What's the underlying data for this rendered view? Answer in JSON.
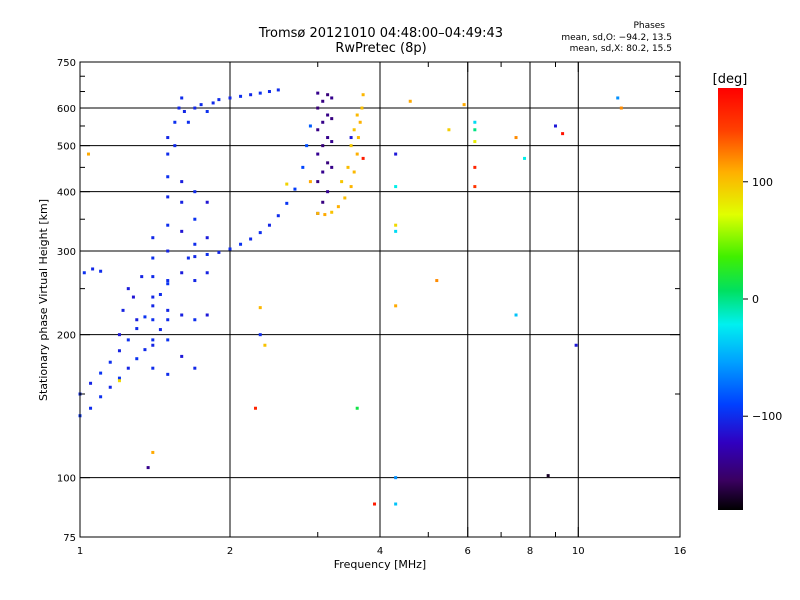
{
  "title_line1": "Tromsø 20121010 04:48:00–04:49:43",
  "title_line2": "RwPretec (8p)",
  "phases": {
    "heading": "Phases",
    "line_o": "mean, sd,O: −94.2, 13.5",
    "line_x": "mean, sd,X:  80.2, 15.5"
  },
  "colorbar": {
    "unit": "[deg]",
    "ticks": [
      "100",
      "0",
      "−100"
    ],
    "tick_values": [
      100,
      0,
      -100
    ],
    "range": [
      -180,
      180
    ]
  },
  "chart_data": {
    "type": "scatter",
    "xlabel": "Frequency [MHz]",
    "ylabel": "Stationary phase Virtual Height [km]",
    "x_scale": "log",
    "y_scale": "log",
    "xlim": [
      1,
      16
    ],
    "ylim": [
      75,
      750
    ],
    "grid": true,
    "x_ticks": [
      1,
      2,
      4,
      6,
      8,
      10,
      16
    ],
    "x_tick_labels": [
      "1",
      "2",
      "4",
      "6",
      "8",
      "10",
      "16"
    ],
    "x_minor_ticks": [
      3,
      5,
      7,
      9
    ],
    "y_ticks": [
      75,
      100,
      200,
      300,
      400,
      500,
      600,
      750
    ],
    "y_tick_labels": [
      "75",
      "100",
      "200",
      "300",
      "400",
      "500",
      "600",
      "750"
    ],
    "y_minor_ticks": [
      150,
      250,
      350,
      450,
      550,
      650,
      700
    ],
    "vertical_grid_lines": [
      2,
      4,
      6,
      8,
      10
    ],
    "horizontal_grid_lines": [
      100,
      200,
      300,
      400,
      500,
      600
    ],
    "series": [
      {
        "values": [
          [
            1.0,
            135,
            -95
          ],
          [
            1.05,
            140,
            -100
          ],
          [
            1.1,
            148,
            -98
          ],
          [
            1.15,
            155,
            -102
          ],
          [
            1.2,
            162,
            -96
          ],
          [
            1.25,
            170,
            -104
          ],
          [
            1.3,
            178,
            -97
          ],
          [
            1.35,
            186,
            -101
          ],
          [
            1.4,
            195,
            -99
          ],
          [
            1.45,
            205,
            -103
          ],
          [
            1.5,
            215,
            -100
          ],
          [
            1.0,
            150,
            -100
          ],
          [
            1.05,
            158,
            -104
          ],
          [
            1.1,
            166,
            -96
          ],
          [
            1.15,
            175,
            -99
          ],
          [
            1.2,
            185,
            -105
          ],
          [
            1.25,
            195,
            -98
          ],
          [
            1.3,
            206,
            -101
          ],
          [
            1.35,
            218,
            -97
          ],
          [
            1.4,
            230,
            -103
          ],
          [
            1.45,
            243,
            -100
          ],
          [
            1.5,
            256,
            -96
          ],
          [
            1.02,
            270,
            -98
          ],
          [
            1.06,
            275,
            -102
          ],
          [
            1.1,
            272,
            -100
          ],
          [
            1.2,
            200,
            -110
          ],
          [
            1.22,
            225,
            -105
          ],
          [
            1.25,
            250,
            -108
          ],
          [
            1.28,
            240,
            -112
          ],
          [
            1.3,
            215,
            -107
          ],
          [
            1.33,
            265,
            -104
          ],
          [
            1.4,
            170,
            -100
          ],
          [
            1.4,
            190,
            -104
          ],
          [
            1.4,
            215,
            -99
          ],
          [
            1.4,
            240,
            -103
          ],
          [
            1.4,
            265,
            -101
          ],
          [
            1.4,
            290,
            -98
          ],
          [
            1.4,
            320,
            -102
          ],
          [
            1.5,
            165,
            -100
          ],
          [
            1.5,
            195,
            -97
          ],
          [
            1.5,
            225,
            -103
          ],
          [
            1.5,
            260,
            -100
          ],
          [
            1.5,
            300,
            -104
          ],
          [
            1.5,
            340,
            -99
          ],
          [
            1.5,
            390,
            -102
          ],
          [
            1.5,
            430,
            -98
          ],
          [
            1.5,
            480,
            -100
          ],
          [
            1.5,
            520,
            -103
          ],
          [
            1.55,
            500,
            -101
          ],
          [
            1.55,
            560,
            -98
          ],
          [
            1.58,
            600,
            -102
          ],
          [
            1.6,
            630,
            -100
          ],
          [
            1.62,
            590,
            -103
          ],
          [
            1.65,
            560,
            -99
          ],
          [
            1.7,
            600,
            -102
          ],
          [
            1.75,
            610,
            -100
          ],
          [
            1.8,
            590,
            -98
          ],
          [
            1.85,
            615,
            -101
          ],
          [
            1.6,
            180,
            -110
          ],
          [
            1.6,
            220,
            -106
          ],
          [
            1.6,
            270,
            -108
          ],
          [
            1.6,
            330,
            -112
          ],
          [
            1.6,
            380,
            -105
          ],
          [
            1.6,
            420,
            -107
          ],
          [
            1.7,
            170,
            -102
          ],
          [
            1.7,
            215,
            -99
          ],
          [
            1.7,
            260,
            -103
          ],
          [
            1.7,
            310,
            -100
          ],
          [
            1.7,
            350,
            -97
          ],
          [
            1.7,
            400,
            -101
          ],
          [
            1.8,
            220,
            -110
          ],
          [
            1.8,
            270,
            -105
          ],
          [
            1.8,
            320,
            -108
          ],
          [
            1.8,
            380,
            -112
          ],
          [
            1.65,
            290,
            -100
          ],
          [
            1.7,
            292,
            -102
          ],
          [
            1.8,
            295,
            -99
          ],
          [
            1.9,
            298,
            -103
          ],
          [
            2.0,
            303,
            -100
          ],
          [
            2.1,
            310,
            -97
          ],
          [
            2.2,
            318,
            -101
          ],
          [
            2.3,
            328,
            -99
          ],
          [
            2.4,
            340,
            -103
          ],
          [
            2.5,
            356,
            -100
          ],
          [
            2.6,
            378,
            -96
          ],
          [
            2.7,
            405,
            -92
          ],
          [
            2.8,
            450,
            -88
          ],
          [
            2.85,
            500,
            -85
          ],
          [
            2.9,
            550,
            -80
          ],
          [
            1.9,
            625,
            -100
          ],
          [
            2.0,
            630,
            -103
          ],
          [
            2.1,
            635,
            -99
          ],
          [
            2.2,
            640,
            -102
          ],
          [
            2.3,
            645,
            -98
          ],
          [
            2.4,
            650,
            -101
          ],
          [
            2.5,
            655,
            -100
          ]
        ]
      },
      {
        "values": [
          [
            3.0,
            360,
            -140
          ],
          [
            3.0,
            420,
            -145
          ],
          [
            3.0,
            480,
            -138
          ],
          [
            3.0,
            540,
            -142
          ],
          [
            3.0,
            600,
            -147
          ],
          [
            3.0,
            645,
            -140
          ],
          [
            3.07,
            380,
            -144
          ],
          [
            3.07,
            440,
            -139
          ],
          [
            3.07,
            500,
            -146
          ],
          [
            3.07,
            560,
            -141
          ],
          [
            3.07,
            620,
            -143
          ],
          [
            3.14,
            400,
            -138
          ],
          [
            3.14,
            460,
            -145
          ],
          [
            3.14,
            520,
            -140
          ],
          [
            3.14,
            580,
            -142
          ],
          [
            3.14,
            640,
            -146
          ],
          [
            3.2,
            450,
            -141
          ],
          [
            3.2,
            510,
            -139
          ],
          [
            3.2,
            570,
            -144
          ],
          [
            3.2,
            630,
            -140
          ]
        ]
      },
      {
        "values": [
          [
            3.0,
            360,
            105
          ],
          [
            3.1,
            358,
            110
          ],
          [
            3.2,
            362,
            100
          ],
          [
            3.3,
            372,
            108
          ],
          [
            3.4,
            388,
            102
          ],
          [
            3.5,
            410,
            106
          ],
          [
            3.55,
            440,
            104
          ],
          [
            3.6,
            480,
            108
          ],
          [
            3.62,
            520,
            103
          ],
          [
            3.65,
            560,
            107
          ],
          [
            3.68,
            600,
            101
          ],
          [
            3.7,
            640,
            105
          ],
          [
            3.35,
            420,
            98
          ],
          [
            3.45,
            450,
            102
          ],
          [
            3.5,
            500,
            96
          ],
          [
            3.55,
            540,
            100
          ],
          [
            3.6,
            580,
            104
          ]
        ]
      },
      {
        "values": [
          [
            2.3,
            228,
            105
          ],
          [
            2.35,
            190,
            100
          ],
          [
            2.25,
            140,
            160
          ],
          [
            2.6,
            415,
            92
          ],
          [
            2.9,
            420,
            110
          ],
          [
            3.6,
            140,
            15
          ],
          [
            3.7,
            470,
            165
          ],
          [
            3.9,
            88,
            165
          ],
          [
            4.3,
            410,
            -20
          ],
          [
            4.3,
            340,
            90
          ],
          [
            4.3,
            330,
            -30
          ],
          [
            4.3,
            230,
            110
          ],
          [
            4.3,
            100,
            -60
          ],
          [
            4.3,
            88,
            -40
          ],
          [
            4.6,
            620,
            110
          ],
          [
            5.2,
            260,
            120
          ],
          [
            5.5,
            540,
            95
          ],
          [
            5.9,
            610,
            110
          ],
          [
            6.2,
            560,
            -30
          ],
          [
            6.2,
            540,
            0
          ],
          [
            6.2,
            510,
            80
          ],
          [
            6.2,
            450,
            160
          ],
          [
            6.2,
            410,
            150
          ],
          [
            7.5,
            520,
            120
          ],
          [
            7.5,
            220,
            -40
          ],
          [
            7.8,
            470,
            -20
          ],
          [
            9.0,
            550,
            -110
          ],
          [
            9.3,
            530,
            170
          ],
          [
            9.9,
            190,
            -110
          ],
          [
            12.0,
            630,
            -60
          ],
          [
            12.2,
            600,
            120
          ],
          [
            1.37,
            105,
            -140
          ],
          [
            1.4,
            113,
            110
          ],
          [
            1.2,
            160,
            90
          ],
          [
            1.04,
            480,
            110
          ],
          [
            2.3,
            200,
            -100
          ],
          [
            3.5,
            520,
            -110
          ],
          [
            4.3,
            480,
            -110
          ],
          [
            8.7,
            101,
            -170
          ]
        ]
      }
    ]
  }
}
